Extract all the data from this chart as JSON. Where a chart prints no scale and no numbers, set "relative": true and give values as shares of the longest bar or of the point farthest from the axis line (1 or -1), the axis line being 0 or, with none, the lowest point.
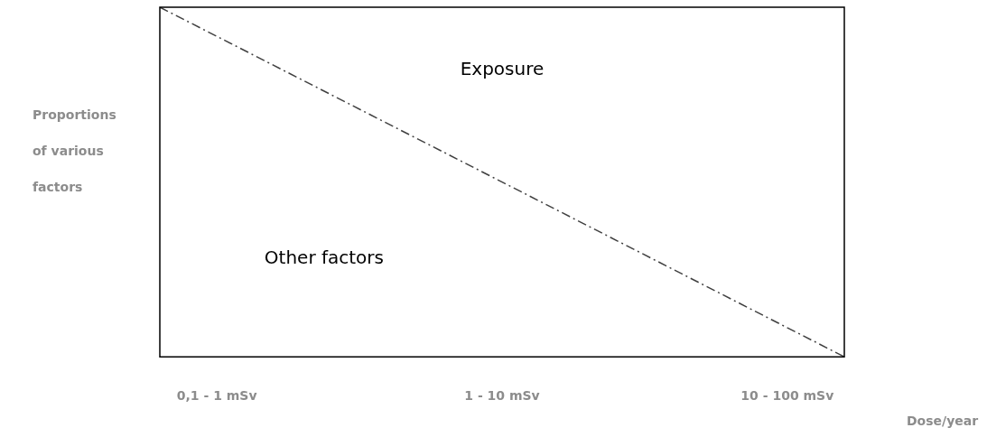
{
  "chart_data": {
    "type": "line",
    "relative": true,
    "categories": [
      null,
      "0,1 - 1 mSv",
      null,
      null,
      null,
      null,
      "1 - 10 mSv",
      null,
      null,
      null,
      null,
      "10 - 100 mSv",
      null
    ],
    "series": [
      {
        "color": "#404040",
        "values": [
          1,
          null,
          null,
          null,
          null,
          null,
          null,
          null,
          null,
          null,
          null,
          null,
          0
        ]
      }
    ],
    "xlabel": "Dose/year",
    "ylabel": "Proportions of various factors",
    "annotations": [
      "Exposure",
      "Other factors"
    ],
    "line_style": "dashed",
    "marker": "none",
    "grid": false,
    "legend": false
  }
}
